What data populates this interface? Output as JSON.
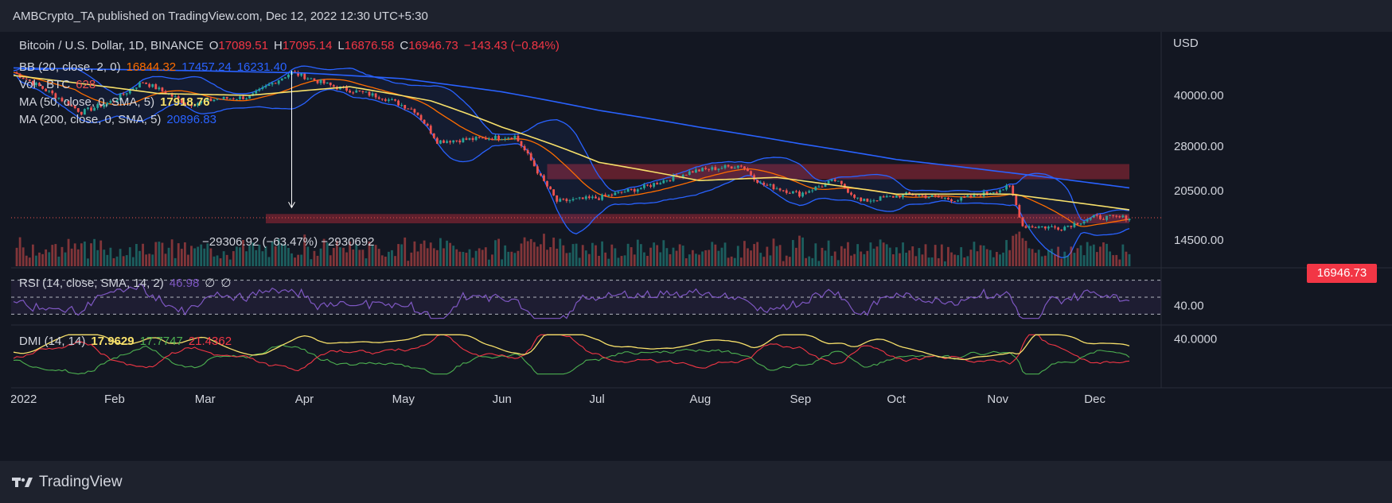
{
  "header": {
    "author": "AMBCrypto_TA",
    "published_on": "published on TradingView.com,",
    "date": "Dec 12, 2022 12:30 UTC+5:30"
  },
  "colors": {
    "background": "#131722",
    "up": "#26a69a",
    "down": "#ef5350",
    "ma50": "#f7e06a",
    "ma200": "#2962ff",
    "bb_basis": "#ff6d00",
    "bb_band": "#2962ff",
    "rsi": "#7e57c2",
    "dmi_adx": "#f7e06a",
    "dmi_plus": "#4caf50",
    "dmi_minus": "#f23645",
    "zone": "#7a2432"
  },
  "legend": {
    "symbol": "Bitcoin / U.S. Dollar, 1D, BINANCE",
    "open_label": "O",
    "open": "17089.51",
    "high_label": "H",
    "high": "17095.14",
    "low_label": "L",
    "low": "16876.58",
    "close_label": "C",
    "close": "16946.73",
    "change": "−143.43 (−0.84%)",
    "bb_label": "BB (20, close, 2, 0)",
    "bb_basis": "16844.32",
    "bb_upper": "17457.24",
    "bb_lower": "16231.40",
    "vol_label": "Vol · BTC",
    "vol": "628",
    "ma50_label": "MA (50, close, 0, SMA, 5)",
    "ma50": "17918.76",
    "ma200_label": "MA (200, close, 0, SMA, 5)",
    "ma200": "20896.83",
    "rsi_label": "RSI (14, close, SMA, 14, 2)",
    "rsi": "46.98",
    "rsi_extra1": "∅",
    "rsi_extra2": "∅",
    "dmi_label": "DMI (14, 14)",
    "dmi_adx": "17.9629",
    "dmi_plus": "17.7747",
    "dmi_minus": "21.4362"
  },
  "measure_label": "−29306.92 (−63.47%) −2930692",
  "chart_data": {
    "type": "candlestick",
    "symbol": "Bitcoin / U.S. Dollar",
    "interval": "1D",
    "exchange": "BINANCE",
    "currency": "USD",
    "price_axis": {
      "scale": "log",
      "ticks": [
        40000,
        28000,
        20500,
        14500
      ],
      "tick_labels": [
        "40000.00",
        "28000.00",
        "20500.00",
        "14500.00"
      ]
    },
    "last_price": "16946.73",
    "x_axis": {
      "start": "2022-01-01",
      "end": "2022-12-12",
      "tick_labels": [
        "2022",
        "Feb",
        "Mar",
        "Apr",
        "May",
        "Jun",
        "Jul",
        "Aug",
        "Sep",
        "Oct",
        "Nov",
        "Dec"
      ],
      "tick_dates": [
        "2022-01-01",
        "2022-02-01",
        "2022-03-01",
        "2022-04-01",
        "2022-05-01",
        "2022-06-01",
        "2022-07-01",
        "2022-08-01",
        "2022-09-01",
        "2022-10-01",
        "2022-11-01",
        "2022-12-01"
      ]
    },
    "price_path": [
      {
        "date": "2022-01-01",
        "close": 47000
      },
      {
        "date": "2022-01-10",
        "close": 42000
      },
      {
        "date": "2022-01-22",
        "close": 35500
      },
      {
        "date": "2022-02-01",
        "close": 38500
      },
      {
        "date": "2022-02-10",
        "close": 44000
      },
      {
        "date": "2022-02-24",
        "close": 37500
      },
      {
        "date": "2022-03-05",
        "close": 39000
      },
      {
        "date": "2022-03-15",
        "close": 39500
      },
      {
        "date": "2022-03-28",
        "close": 47000
      },
      {
        "date": "2022-04-10",
        "close": 42500
      },
      {
        "date": "2022-04-25",
        "close": 39500
      },
      {
        "date": "2022-05-05",
        "close": 36000
      },
      {
        "date": "2022-05-12",
        "close": 29000
      },
      {
        "date": "2022-05-25",
        "close": 29500
      },
      {
        "date": "2022-06-05",
        "close": 30000
      },
      {
        "date": "2022-06-13",
        "close": 22500
      },
      {
        "date": "2022-06-18",
        "close": 19000
      },
      {
        "date": "2022-07-01",
        "close": 19500
      },
      {
        "date": "2022-07-15",
        "close": 21000
      },
      {
        "date": "2022-07-30",
        "close": 23500
      },
      {
        "date": "2022-08-14",
        "close": 24500
      },
      {
        "date": "2022-08-20",
        "close": 21500
      },
      {
        "date": "2022-09-01",
        "close": 20000
      },
      {
        "date": "2022-09-12",
        "close": 22000
      },
      {
        "date": "2022-09-20",
        "close": 19000
      },
      {
        "date": "2022-10-05",
        "close": 20000
      },
      {
        "date": "2022-10-20",
        "close": 19200
      },
      {
        "date": "2022-11-05",
        "close": 21000
      },
      {
        "date": "2022-11-09",
        "close": 16000
      },
      {
        "date": "2022-11-21",
        "close": 15800
      },
      {
        "date": "2022-12-01",
        "close": 17000
      },
      {
        "date": "2022-12-12",
        "close": 16946
      }
    ],
    "ma50_path": [
      {
        "date": "2022-01-01",
        "value": 46000
      },
      {
        "date": "2022-02-15",
        "value": 40500
      },
      {
        "date": "2022-03-15",
        "value": 40000
      },
      {
        "date": "2022-04-15",
        "value": 42500
      },
      {
        "date": "2022-05-10",
        "value": 38500
      },
      {
        "date": "2022-06-01",
        "value": 32000
      },
      {
        "date": "2022-07-01",
        "value": 25000
      },
      {
        "date": "2022-08-01",
        "value": 22000
      },
      {
        "date": "2022-08-25",
        "value": 22500
      },
      {
        "date": "2022-10-01",
        "value": 20000
      },
      {
        "date": "2022-11-05",
        "value": 20000
      },
      {
        "date": "2022-12-12",
        "value": 17918
      }
    ],
    "ma200_path": [
      {
        "date": "2022-01-01",
        "value": 48500
      },
      {
        "date": "2022-03-01",
        "value": 47500
      },
      {
        "date": "2022-04-01",
        "value": 46800
      },
      {
        "date": "2022-05-01",
        "value": 45000
      },
      {
        "date": "2022-06-01",
        "value": 41000
      },
      {
        "date": "2022-07-01",
        "value": 36000
      },
      {
        "date": "2022-08-01",
        "value": 32000
      },
      {
        "date": "2022-09-01",
        "value": 28500
      },
      {
        "date": "2022-10-01",
        "value": 25500
      },
      {
        "date": "2022-11-01",
        "value": 23500
      },
      {
        "date": "2022-12-12",
        "value": 20896
      }
    ],
    "measure": {
      "from_date": "2022-03-28",
      "from_price": 47500,
      "to_date": "2022-03-28",
      "to_price": 18200,
      "change": "−29306.92",
      "percent": "−63.47%"
    },
    "zones": [
      {
        "from_date": "2022-06-15",
        "to_date": "2022-12-12",
        "low": 22200,
        "high": 24700
      },
      {
        "from_date": "2022-03-20",
        "to_date": "2022-12-12",
        "low": 16300,
        "high": 17400
      }
    ],
    "rsi": {
      "levels": [
        70,
        50,
        30
      ],
      "tick_labels": [
        "40.00"
      ],
      "last": 46.98
    },
    "dmi": {
      "tick_labels": [
        "40.0000"
      ],
      "adx": 17.9629,
      "plus_di": 17.7747,
      "minus_di": 21.4362
    }
  },
  "footer": {
    "brand": "TradingView"
  }
}
